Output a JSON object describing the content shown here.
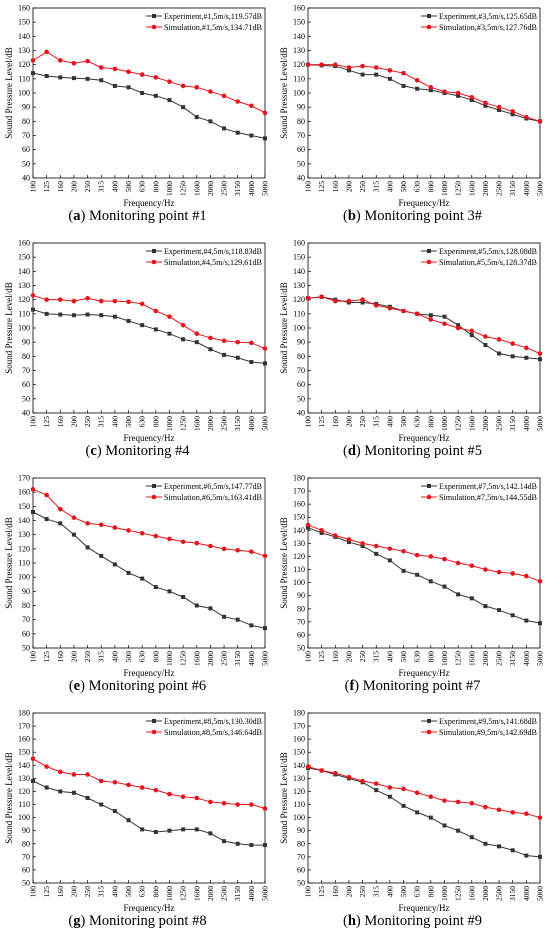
{
  "figure": {
    "xlabel": "Frequency/Hz",
    "ylabel": "Sound Pressure Level/dB",
    "x_ticks": [
      "100",
      "125",
      "160",
      "200",
      "250",
      "315",
      "400",
      "500",
      "630",
      "800",
      "1000",
      "1250",
      "1600",
      "2000",
      "2500",
      "3150",
      "4000",
      "5000"
    ],
    "colors": {
      "experiment": "#333333",
      "simulation": "#e8141c"
    },
    "markers": {
      "experiment": "square",
      "simulation": "circle"
    }
  },
  "chart_data": [
    {
      "type": "line",
      "panel_letter": "a",
      "caption_text": " Monitoring point #1",
      "xlabel": "Frequency/Hz",
      "ylabel": "Sound Pressure Level/dB",
      "categories": [
        "100",
        "125",
        "160",
        "200",
        "250",
        "315",
        "400",
        "500",
        "630",
        "800",
        "1000",
        "1250",
        "1600",
        "2000",
        "2500",
        "3150",
        "4000",
        "5000"
      ],
      "ylim": [
        40,
        160
      ],
      "yticks": [
        40,
        50,
        60,
        70,
        80,
        90,
        100,
        110,
        120,
        130,
        140,
        150,
        160
      ],
      "legend_position": "top-right",
      "grid": false,
      "series": [
        {
          "name": "Experiment,#1,5m/s,119.57dB",
          "values": [
            114,
            112,
            111,
            110.5,
            110,
            109,
            105,
            104,
            100,
            98,
            95,
            90,
            83,
            80,
            75,
            72,
            70,
            68
          ]
        },
        {
          "name": "Simulation,#1,5m/s,134.71dB",
          "values": [
            123,
            129,
            123,
            121,
            122.5,
            118,
            117,
            115,
            113,
            111,
            108,
            105,
            104,
            101,
            98,
            94,
            91,
            86
          ]
        }
      ]
    },
    {
      "type": "line",
      "panel_letter": "b",
      "caption_text": " Monitoring point 3#",
      "xlabel": "Frequency/Hz",
      "ylabel": "Sound Pressure Level/dB",
      "categories": [
        "100",
        "125",
        "160",
        "200",
        "250",
        "315",
        "400",
        "500",
        "630",
        "800",
        "1000",
        "1250",
        "1600",
        "2000",
        "2500",
        "3150",
        "4000",
        "5000"
      ],
      "ylim": [
        40,
        160
      ],
      "yticks": [
        40,
        50,
        60,
        70,
        80,
        90,
        100,
        110,
        120,
        130,
        140,
        150,
        160
      ],
      "legend_position": "top-right",
      "grid": false,
      "series": [
        {
          "name": "Experiment,#3,5m/s,125.65dB",
          "values": [
            120,
            119.5,
            119,
            116,
            113,
            113,
            110,
            105,
            103,
            102,
            100,
            98,
            95,
            91,
            88,
            85,
            82,
            80
          ]
        },
        {
          "name": "Simulation,#3,5m/s,127.76dB",
          "values": [
            120,
            120,
            120,
            118,
            119,
            118,
            116,
            114,
            109,
            104,
            101,
            100,
            97,
            93,
            90,
            87,
            83,
            80
          ]
        }
      ]
    },
    {
      "type": "line",
      "panel_letter": "c",
      "caption_text": " Monitoring #4",
      "xlabel": "Frequency/Hz",
      "ylabel": "Sound Pressure Level/dB",
      "categories": [
        "100",
        "125",
        "160",
        "200",
        "250",
        "315",
        "400",
        "500",
        "630",
        "800",
        "1000",
        "1250",
        "1600",
        "2000",
        "2500",
        "3150",
        "4000",
        "5000"
      ],
      "ylim": [
        40,
        160
      ],
      "yticks": [
        40,
        50,
        60,
        70,
        80,
        90,
        100,
        110,
        120,
        130,
        140,
        150,
        160
      ],
      "legend_position": "top-right",
      "grid": false,
      "series": [
        {
          "name": "Experiment,#4,5m/s,118.83dB",
          "values": [
            113,
            110,
            109.5,
            109,
            109.5,
            109,
            108,
            105,
            102,
            99,
            96,
            92,
            90,
            85,
            81,
            79,
            76,
            75
          ]
        },
        {
          "name": "Simulation,#4,5m/s,129.61dB",
          "values": [
            123,
            120,
            120,
            119,
            121,
            119,
            119,
            118.5,
            117,
            112,
            108,
            102,
            96,
            93,
            91,
            90,
            89.5,
            85.5
          ]
        }
      ]
    },
    {
      "type": "line",
      "panel_letter": "d",
      "caption_text": " Monitoring point #5",
      "xlabel": "Frequency/Hz",
      "ylabel": "Sound Pressure Level/dB",
      "categories": [
        "100",
        "125",
        "160",
        "200",
        "250",
        "315",
        "400",
        "500",
        "630",
        "800",
        "1000",
        "1250",
        "1600",
        "2000",
        "2500",
        "3150",
        "4000",
        "5000"
      ],
      "ylim": [
        40,
        160
      ],
      "yticks": [
        40,
        50,
        60,
        70,
        80,
        90,
        100,
        110,
        120,
        130,
        140,
        150,
        160
      ],
      "legend_position": "top-right",
      "grid": false,
      "series": [
        {
          "name": "Experiment,#5,5m/s,128.08dB",
          "values": [
            121,
            122,
            120,
            118,
            118,
            117,
            115,
            112,
            110,
            109,
            108,
            102,
            95,
            88,
            82,
            80,
            79,
            78
          ]
        },
        {
          "name": "Simulation,#5,5m/s,128.37dB",
          "values": [
            121,
            122,
            119,
            119,
            120,
            116,
            114,
            112,
            110,
            106,
            103,
            100,
            98,
            94,
            92,
            89,
            86,
            82
          ]
        }
      ]
    },
    {
      "type": "line",
      "panel_letter": "e",
      "caption_text": " Monitoring point #6",
      "xlabel": "Frequency/Hz",
      "ylabel": "Sound Pressure Level/dB",
      "categories": [
        "100",
        "125",
        "160",
        "200",
        "250",
        "315",
        "400",
        "500",
        "630",
        "800",
        "1000",
        "1250",
        "1600",
        "2000",
        "2500",
        "3150",
        "4000",
        "5000"
      ],
      "ylim": [
        50,
        170
      ],
      "yticks": [
        50,
        60,
        70,
        80,
        90,
        100,
        110,
        120,
        130,
        140,
        150,
        160,
        170
      ],
      "legend_position": "top-right",
      "grid": false,
      "series": [
        {
          "name": "Experiment,#6,5m/s,147.77dB",
          "values": [
            146,
            141,
            138,
            130,
            121,
            115,
            109,
            103,
            99,
            93,
            90,
            86,
            80,
            78,
            72,
            70,
            66,
            64
          ]
        },
        {
          "name": "Simulation,#6,5m/s,163.41dB",
          "values": [
            162,
            158,
            148,
            142,
            138,
            137,
            135,
            133,
            131,
            129,
            127,
            125,
            124,
            122,
            120,
            119,
            118,
            115
          ]
        }
      ]
    },
    {
      "type": "line",
      "panel_letter": "f",
      "caption_text": " Monitoring point #7",
      "xlabel": "Frequency/Hz",
      "ylabel": "Sound Pressure Level/dB",
      "categories": [
        "100",
        "125",
        "160",
        "200",
        "250",
        "315",
        "400",
        "500",
        "630",
        "800",
        "1000",
        "1250",
        "1600",
        "2000",
        "2500",
        "3150",
        "4000",
        "5000"
      ],
      "ylim": [
        50,
        180
      ],
      "yticks": [
        50,
        60,
        70,
        80,
        90,
        100,
        110,
        120,
        130,
        140,
        150,
        160,
        170,
        180
      ],
      "legend_position": "top-right",
      "grid": false,
      "series": [
        {
          "name": "Experiment,#7,5m/s,142.14dB",
          "values": [
            142,
            138,
            135,
            131,
            128,
            122,
            117,
            109,
            106,
            101,
            97,
            91,
            88,
            82,
            79,
            75,
            71,
            69
          ]
        },
        {
          "name": "Simulation,#7,5m/s,144.55dB",
          "values": [
            144,
            140,
            136,
            133,
            130,
            128,
            126,
            124,
            121,
            120,
            118,
            115,
            113,
            110,
            108,
            107,
            105,
            101
          ]
        }
      ]
    },
    {
      "type": "line",
      "panel_letter": "g",
      "caption_text": " Monitoring point #8",
      "xlabel": "Frequency/Hz",
      "ylabel": "Sound Pressure Level/dB",
      "categories": [
        "100",
        "125",
        "160",
        "200",
        "250",
        "315",
        "400",
        "500",
        "630",
        "800",
        "1000",
        "1250",
        "1600",
        "2000",
        "2500",
        "3150",
        "4000",
        "5000"
      ],
      "ylim": [
        50,
        180
      ],
      "yticks": [
        50,
        60,
        70,
        80,
        90,
        100,
        110,
        120,
        130,
        140,
        150,
        160,
        170,
        180
      ],
      "legend_position": "top-right",
      "grid": false,
      "series": [
        {
          "name": "Experiment,#8,5m/s,130.30dB",
          "values": [
            128,
            123,
            120,
            119,
            115,
            110,
            105,
            98,
            91,
            89,
            90,
            91,
            91,
            88,
            82,
            80,
            79,
            79
          ]
        },
        {
          "name": "Simulation,#8,5m/s,146.64dB",
          "values": [
            145,
            139,
            135,
            133,
            133,
            128,
            127,
            125,
            123,
            121,
            118,
            116,
            115,
            112,
            111,
            110,
            110,
            107
          ]
        }
      ]
    },
    {
      "type": "line",
      "panel_letter": "h",
      "caption_text": " Monitoring point #9",
      "xlabel": "Frequency/Hz",
      "ylabel": "Sound Pressure Level/dB",
      "categories": [
        "100",
        "125",
        "160",
        "200",
        "250",
        "315",
        "400",
        "500",
        "630",
        "800",
        "1000",
        "1250",
        "1600",
        "2000",
        "2500",
        "3150",
        "4000",
        "5000"
      ],
      "ylim": [
        50,
        180
      ],
      "yticks": [
        50,
        60,
        70,
        80,
        90,
        100,
        110,
        120,
        130,
        140,
        150,
        160,
        170,
        180
      ],
      "legend_position": "top-right",
      "grid": false,
      "series": [
        {
          "name": "Experiment,#9,5m/s,141.68dB",
          "values": [
            138,
            136,
            133,
            130,
            127,
            121,
            116,
            109,
            104,
            100,
            94,
            90,
            85,
            80,
            78,
            75,
            71,
            70
          ]
        },
        {
          "name": "Simulation,#9,5m/s,142.69dB",
          "values": [
            139,
            136,
            134,
            131,
            128,
            126,
            123,
            122,
            119,
            116,
            113,
            112,
            111,
            108,
            106,
            104,
            103,
            100
          ]
        }
      ]
    }
  ]
}
